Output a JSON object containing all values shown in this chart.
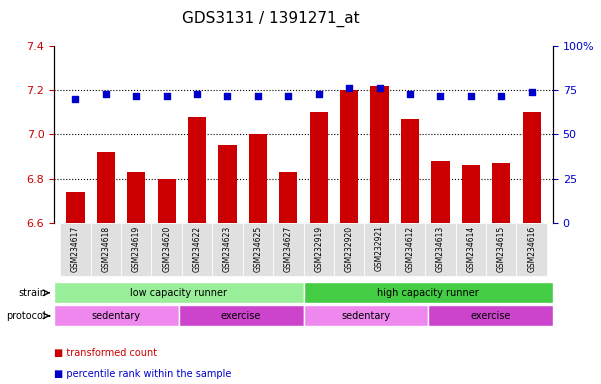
{
  "title": "GDS3131 / 1391271_at",
  "samples": [
    "GSM234617",
    "GSM234618",
    "GSM234619",
    "GSM234620",
    "GSM234622",
    "GSM234623",
    "GSM234625",
    "GSM234627",
    "GSM232919",
    "GSM232920",
    "GSM232921",
    "GSM234612",
    "GSM234613",
    "GSM234614",
    "GSM234615",
    "GSM234616"
  ],
  "bar_values": [
    6.74,
    6.92,
    6.83,
    6.8,
    7.08,
    6.95,
    7.0,
    6.83,
    7.1,
    7.2,
    7.22,
    7.07,
    6.88,
    6.86,
    6.87,
    7.1
  ],
  "percentile_values": [
    70,
    73,
    72,
    72,
    73,
    72,
    72,
    72,
    73,
    76,
    76,
    73,
    72,
    72,
    72,
    74
  ],
  "ylim_left": [
    6.6,
    7.4
  ],
  "ylim_right": [
    0,
    100
  ],
  "bar_color": "#cc0000",
  "dot_color": "#0000cc",
  "strain_groups": [
    {
      "label": "low capacity runner",
      "start": 0,
      "end": 8,
      "color": "#99ee99"
    },
    {
      "label": "high capacity runner",
      "start": 8,
      "end": 16,
      "color": "#44cc44"
    }
  ],
  "protocol_groups": [
    {
      "label": "sedentary",
      "start": 0,
      "end": 4,
      "color": "#ee88ee"
    },
    {
      "label": "exercise",
      "start": 4,
      "end": 8,
      "color": "#cc44cc"
    },
    {
      "label": "sedentary",
      "start": 8,
      "end": 12,
      "color": "#ee88ee"
    },
    {
      "label": "exercise",
      "start": 12,
      "end": 16,
      "color": "#cc44cc"
    }
  ],
  "legend_items": [
    {
      "label": "transformed count",
      "color": "#cc0000"
    },
    {
      "label": "percentile rank within the sample",
      "color": "#0000cc"
    }
  ],
  "yticks_left": [
    6.6,
    6.8,
    7.0,
    7.2,
    7.4
  ],
  "yticks_right": [
    0,
    25,
    50,
    75,
    100
  ],
  "ytick_right_labels": [
    "0",
    "25",
    "50",
    "75",
    "100%"
  ],
  "background_color": "#ffffff"
}
